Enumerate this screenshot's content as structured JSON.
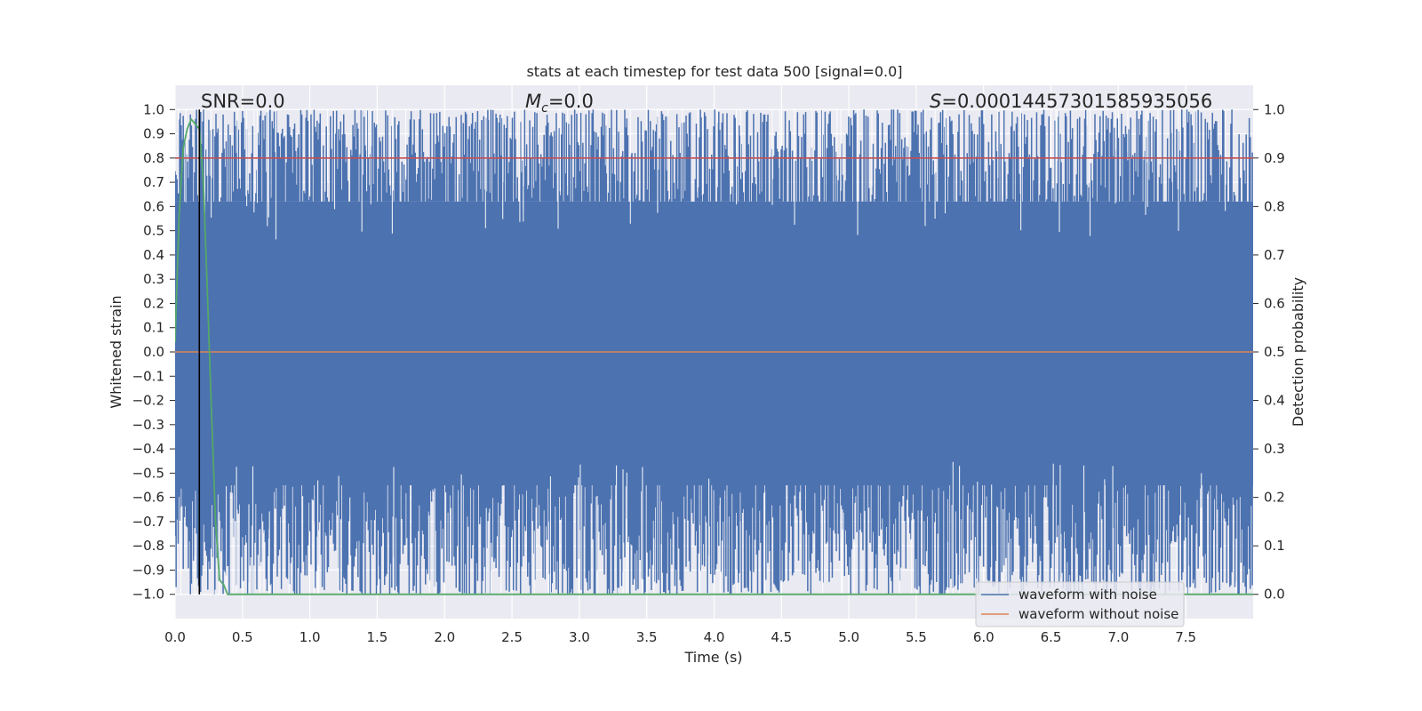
{
  "chart_data": {
    "type": "line",
    "title": "stats at each timestep for test data 500 [signal=0.0]",
    "xlabel": "Time (s)",
    "ylabel_left": "Whitened strain",
    "ylabel_right": "Detection probability",
    "xlim": [
      0.0,
      8.0
    ],
    "ylim_left": [
      -1.1,
      1.1
    ],
    "ylim_right": [
      -0.05,
      1.05
    ],
    "x_ticks": [
      "0.0",
      "0.5",
      "1.0",
      "1.5",
      "2.0",
      "2.5",
      "3.0",
      "3.5",
      "4.0",
      "4.5",
      "5.0",
      "5.5",
      "6.0",
      "6.5",
      "7.0",
      "7.5"
    ],
    "y_ticks_left": [
      "1.0",
      "0.9",
      "0.8",
      "0.7",
      "0.6",
      "0.5",
      "0.4",
      "0.3",
      "0.2",
      "0.1",
      "0.0",
      "−0.1",
      "−0.2",
      "−0.3",
      "−0.4",
      "−0.5",
      "−0.6",
      "−0.7",
      "−0.8",
      "−0.9",
      "−1.0"
    ],
    "y_ticks_right": [
      "1.0",
      "0.9",
      "0.8",
      "0.7",
      "0.6",
      "0.5",
      "0.4",
      "0.3",
      "0.2",
      "0.1",
      "0.0"
    ],
    "annotations": {
      "snr": "SNR=0.0",
      "mc_symbol": "M",
      "mc_sub": "c",
      "mc_value": "=0.0",
      "s_symbol": "S",
      "s_value": "=0.00014457301585935056"
    },
    "vertical_line_x": 0.18,
    "threshold_probability": 0.9,
    "series": [
      {
        "name": "waveform with noise",
        "color": "#4c72b0",
        "axis": "left",
        "description": "dense whitened noise spanning roughly -1.0 to 1.0"
      },
      {
        "name": "waveform without noise",
        "color": "#dd8452",
        "axis": "left",
        "values_constant": 0.0
      },
      {
        "color": "#55a868",
        "axis": "right",
        "x": [
          0.0,
          0.03,
          0.06,
          0.09,
          0.12,
          0.15,
          0.18,
          0.21,
          0.24,
          0.27,
          0.3,
          0.33,
          0.36,
          0.39,
          0.45,
          8.0
        ],
        "y": [
          0.52,
          0.78,
          0.92,
          0.96,
          0.98,
          0.97,
          0.96,
          0.85,
          0.62,
          0.38,
          0.15,
          0.03,
          0.02,
          0.0,
          0.0,
          0.0
        ]
      }
    ],
    "threshold_line_color": "#c44e52",
    "vertical_line_color": "#000000",
    "background": "#eaeaf2",
    "grid": true,
    "legend_position": "lower-right"
  }
}
